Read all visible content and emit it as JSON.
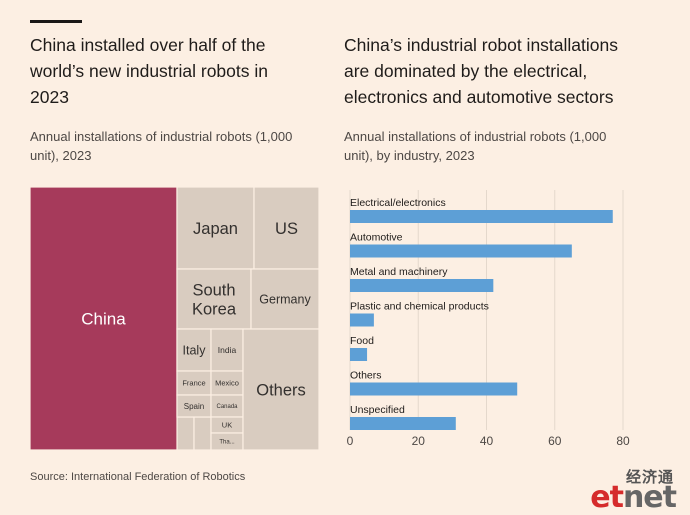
{
  "left": {
    "title_lines": [
      "China installed over half of the",
      "world’s new industrial robots in",
      "2023"
    ],
    "subtitle_lines": [
      "Annual installations of industrial robots (1,000",
      "unit), 2023"
    ]
  },
  "right": {
    "title_lines": [
      "China’s industrial robot installations",
      "are dominated by the electrical,",
      "electronics and automotive sectors"
    ],
    "subtitle_lines": [
      "Annual installations of industrial robots (1,000",
      "unit), by industry, 2023"
    ]
  },
  "source": "Source: International Federation of Robotics",
  "logo": {
    "cn": "经济通",
    "en_e": "et",
    "en_rest": "net"
  },
  "colors": {
    "china": "#a63a5b",
    "other_countries": "#d9ccc0",
    "bar": "#5d9fd6",
    "background": "#fcefe3",
    "grid": "#e4d8cc"
  },
  "chart_data": [
    {
      "type": "treemap",
      "items": [
        {
          "name": "China",
          "value": 276
        },
        {
          "name": "Japan",
          "value": 46
        },
        {
          "name": "US",
          "value": 37
        },
        {
          "name": "South Korea",
          "value": 31
        },
        {
          "name": "Germany",
          "value": 28
        },
        {
          "name": "Italy",
          "value": 10
        },
        {
          "name": "India",
          "value": 8
        },
        {
          "name": "France",
          "value": 7
        },
        {
          "name": "Mexico",
          "value": 6
        },
        {
          "name": "Spain",
          "value": 6
        },
        {
          "name": "Canada",
          "value": 4
        },
        {
          "name": "UK",
          "value": 3
        },
        {
          "name": "Tha...",
          "value": 3
        },
        {
          "name": "Others",
          "value": 56
        }
      ]
    },
    {
      "type": "bar",
      "orientation": "horizontal",
      "categories": [
        "Electrical/electronics",
        "Automotive",
        "Metal and machinery",
        "Plastic and chemical products",
        "Food",
        "Others",
        "Unspecified"
      ],
      "values": [
        77,
        65,
        42,
        7,
        5,
        49,
        31
      ],
      "xlim": [
        0,
        80
      ],
      "xticks": [
        0,
        20,
        40,
        60,
        80
      ],
      "grid": true
    }
  ]
}
